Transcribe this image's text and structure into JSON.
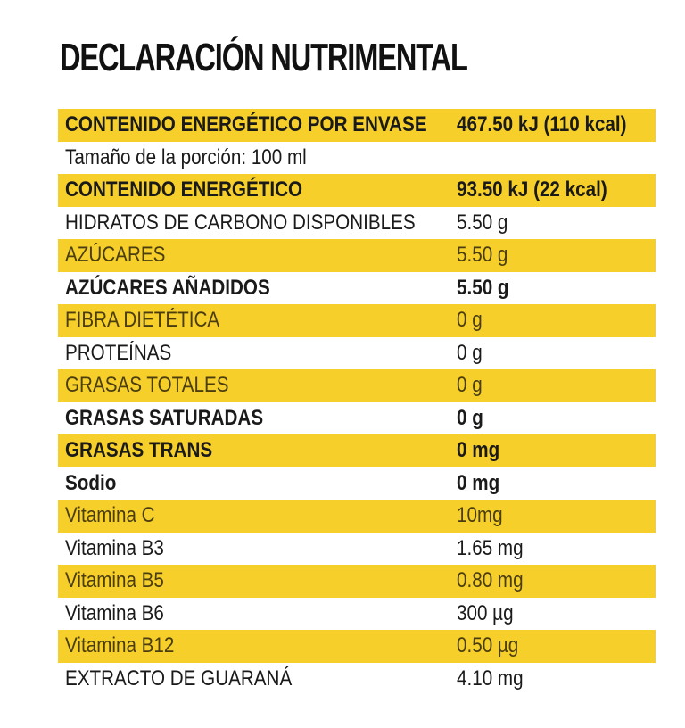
{
  "title": "DECLARACIÓN NUTRIMENTAL",
  "rows": [
    {
      "label": "CONTENIDO ENERGÉTICO POR ENVASE",
      "value": "467.50 kJ (110 kcal)"
    },
    {
      "label": "Tamaño de la porción: 100 ml",
      "value": ""
    },
    {
      "label": "CONTENIDO ENERGÉTICO",
      "value": "93.50 kJ (22 kcal)"
    },
    {
      "label": "HIDRATOS DE CARBONO DISPONIBLES",
      "value": "5.50 g"
    },
    {
      "label": "AZÚCARES",
      "value": "5.50 g"
    },
    {
      "label": "AZÚCARES AÑADIDOS",
      "value": "5.50 g"
    },
    {
      "label": "FIBRA DIETÉTICA",
      "value": "0 g"
    },
    {
      "label": "PROTEÍNAS",
      "value": "0 g"
    },
    {
      "label": "GRASAS TOTALES",
      "value": "0 g"
    },
    {
      "label": "GRASAS SATURADAS",
      "value": "0 g"
    },
    {
      "label": "GRASAS TRANS",
      "value": "0 mg"
    },
    {
      "label": "Sodio",
      "value": "0 mg"
    },
    {
      "label": "Vitamina C",
      "value": "10mg"
    },
    {
      "label": "Vitamina B3",
      "value": "1.65 mg"
    },
    {
      "label": "Vitamina B5",
      "value": "0.80 mg"
    },
    {
      "label": "Vitamina B6",
      "value": "300 µg"
    },
    {
      "label": "Vitamina B12",
      "value": "0.50 µg"
    },
    {
      "label": "EXTRACTO DE GUARANÁ",
      "value": "4.10 mg"
    }
  ],
  "colors": {
    "highlight": "#f6cf2a",
    "text": "#1a1a1a"
  }
}
